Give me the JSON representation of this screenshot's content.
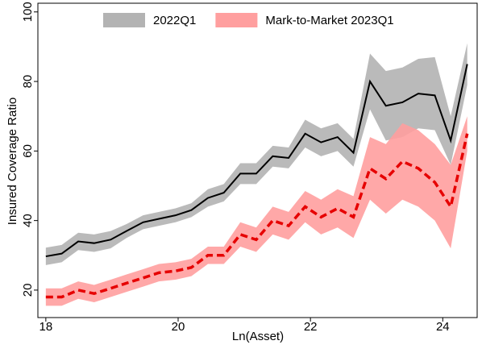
{
  "chart_data": {
    "type": "band-line",
    "xlabel": "Ln(Asset)",
    "ylabel": "Insured Coverage Ratio",
    "x": [
      18.0,
      18.24,
      18.49,
      18.73,
      18.98,
      19.22,
      19.47,
      19.71,
      19.96,
      20.2,
      20.45,
      20.69,
      20.94,
      21.18,
      21.43,
      21.67,
      21.92,
      22.16,
      22.41,
      22.65,
      22.9,
      23.14,
      23.39,
      23.63,
      23.88,
      24.12,
      24.37
    ],
    "xlim": [
      17.88,
      24.52
    ],
    "xticks": [
      18,
      20,
      22,
      24
    ],
    "ylim": [
      12.1,
      102.5
    ],
    "yticks": [
      20,
      40,
      60,
      80,
      100
    ],
    "legend": "top",
    "series": [
      {
        "name": "2022Q1",
        "color": "#b3b3b3",
        "line_color": "#000000",
        "dashed": false,
        "values": [
          29.7,
          30.5,
          34,
          33.5,
          34.5,
          37,
          39.5,
          40.5,
          41.5,
          43,
          46.5,
          48,
          53.5,
          53.5,
          58.5,
          58,
          65,
          62.5,
          64,
          59.5,
          80,
          73,
          74,
          76.5,
          76,
          63,
          85
        ],
        "lower": [
          27.2,
          28,
          31.5,
          31,
          32,
          35,
          37.5,
          38.5,
          39.5,
          41,
          44,
          45.5,
          50.5,
          50.5,
          55.5,
          55,
          61,
          58.5,
          60,
          55.5,
          72,
          63,
          64,
          66.5,
          66,
          56,
          79
        ],
        "upper": [
          32.2,
          33,
          36.5,
          36,
          37,
          39,
          41.5,
          42.5,
          43.5,
          45,
          49,
          50.5,
          56.5,
          56.5,
          61.5,
          61,
          69,
          66.5,
          68,
          63.5,
          88,
          83,
          84,
          86.5,
          87,
          70,
          91
        ]
      },
      {
        "name": "Mark-to-Market 2023Q1",
        "color": "#ff9f9f",
        "line_color": "#e60000",
        "dashed": true,
        "values": [
          18,
          18,
          20,
          19,
          20.5,
          22,
          23.5,
          25,
          25.5,
          26.5,
          30,
          30,
          36,
          34.5,
          40,
          38.5,
          44,
          41,
          43.5,
          41,
          55,
          52,
          57,
          55,
          51,
          44,
          65
        ],
        "lower": [
          15.5,
          15.5,
          17.5,
          16.5,
          18,
          19.5,
          21,
          22.5,
          23,
          24,
          27.5,
          27.5,
          32.5,
          31,
          36,
          34.5,
          39.5,
          36,
          38,
          35,
          46,
          42,
          46,
          44,
          40,
          32,
          60
        ],
        "upper": [
          20.5,
          20.5,
          22.5,
          21.5,
          23,
          24.5,
          26,
          27.5,
          28,
          29,
          32.5,
          32.5,
          39.5,
          38,
          44,
          42.5,
          48.5,
          46,
          49,
          47,
          64,
          62,
          68,
          66,
          62,
          56,
          70
        ]
      }
    ]
  }
}
